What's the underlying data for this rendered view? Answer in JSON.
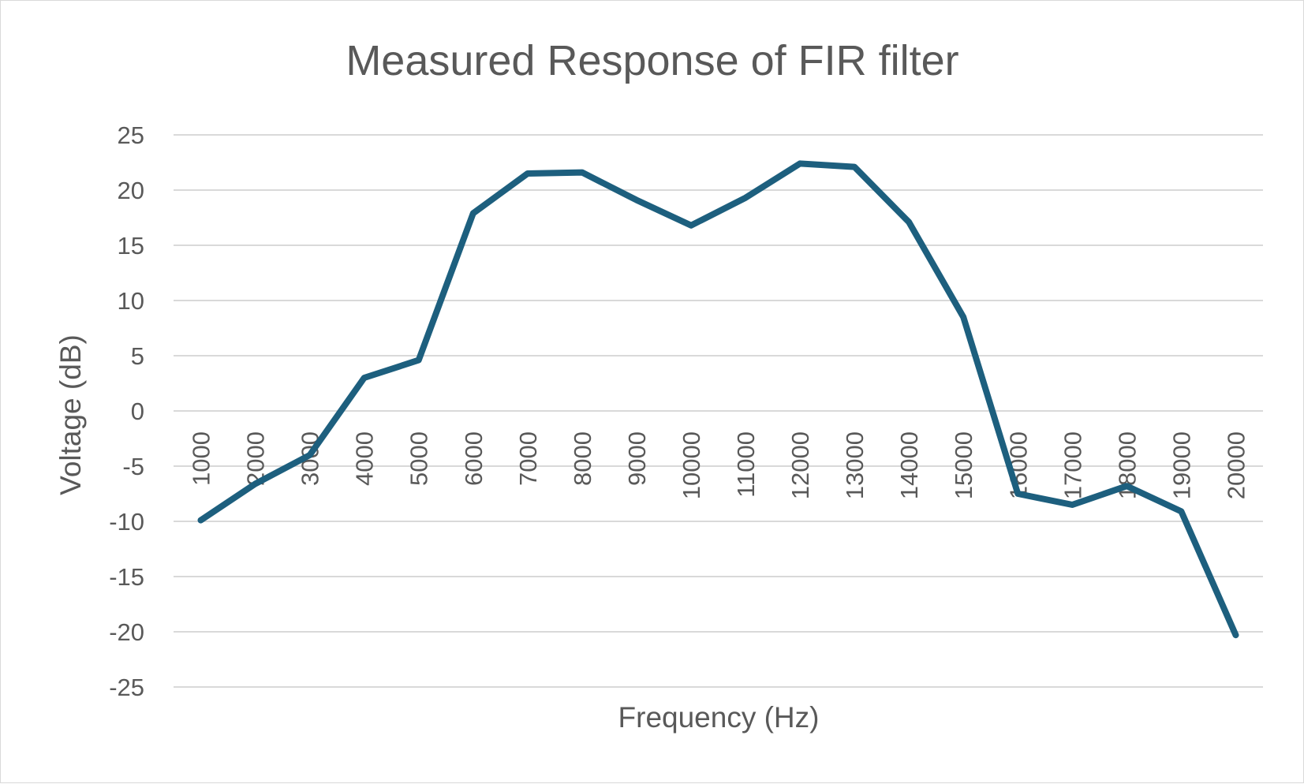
{
  "chart_data": {
    "type": "line",
    "title": "Measured Response of FIR filter",
    "xlabel": "Frequency (Hz)",
    "ylabel": "Voltage (dB)",
    "categories": [
      "1000",
      "2000",
      "3000",
      "4000",
      "5000",
      "6000",
      "7000",
      "8000",
      "9000",
      "10000",
      "11000",
      "12000",
      "13000",
      "14000",
      "15000",
      "16000",
      "17000",
      "18000",
      "19000",
      "20000"
    ],
    "series": [
      {
        "values": [
          -9.9,
          -6.6,
          -4.0,
          3.0,
          4.6,
          17.9,
          21.5,
          21.6,
          19.1,
          16.8,
          19.3,
          22.4,
          22.1,
          17.1,
          8.5,
          -7.5,
          -8.5,
          -6.8,
          -9.1,
          -20.3
        ],
        "color": "#1d5f7e"
      }
    ],
    "ylim": [
      -25,
      25
    ],
    "yticks": [
      "25",
      "20",
      "15",
      "10",
      "5",
      "0",
      "-5",
      "-10",
      "-15",
      "-20",
      "-25"
    ],
    "ytick_values": [
      25,
      20,
      15,
      10,
      5,
      0,
      -5,
      -10,
      -15,
      -20,
      -25
    ],
    "grid": true,
    "legend": "none"
  }
}
